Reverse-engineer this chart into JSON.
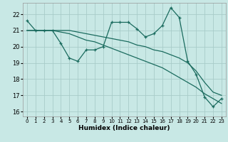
{
  "xlabel": "Humidex (Indice chaleur)",
  "background_color": "#c8e8e5",
  "grid_color": "#a8ccc9",
  "line_color": "#1a6b5e",
  "xlim": [
    -0.5,
    23.5
  ],
  "ylim": [
    15.7,
    22.7
  ],
  "yticks": [
    16,
    17,
    18,
    19,
    20,
    21,
    22
  ],
  "xticks": [
    0,
    1,
    2,
    3,
    4,
    5,
    6,
    7,
    8,
    9,
    10,
    11,
    12,
    13,
    14,
    15,
    16,
    17,
    18,
    19,
    20,
    21,
    22,
    23
  ],
  "line_zigzag": [
    21.6,
    21.0,
    21.0,
    21.0,
    20.2,
    19.3,
    19.1,
    19.8,
    19.8,
    20.0,
    21.5,
    21.5,
    21.5,
    21.1,
    20.6,
    20.8,
    21.3,
    22.4,
    21.8,
    19.1,
    18.3,
    16.9,
    16.3,
    16.8
  ],
  "line_upper": [
    21.0,
    21.0,
    21.0,
    21.0,
    21.0,
    21.0,
    20.9,
    20.8,
    20.7,
    20.6,
    20.5,
    20.4,
    20.3,
    20.1,
    20.0,
    19.8,
    19.7,
    19.5,
    19.3,
    19.0,
    18.5,
    17.8,
    17.2,
    17.0
  ],
  "line_lower": [
    21.0,
    21.0,
    21.0,
    21.0,
    20.9,
    20.8,
    20.6,
    20.4,
    20.3,
    20.1,
    19.9,
    19.7,
    19.5,
    19.3,
    19.1,
    18.9,
    18.7,
    18.4,
    18.1,
    17.8,
    17.5,
    17.1,
    16.8,
    16.5
  ]
}
